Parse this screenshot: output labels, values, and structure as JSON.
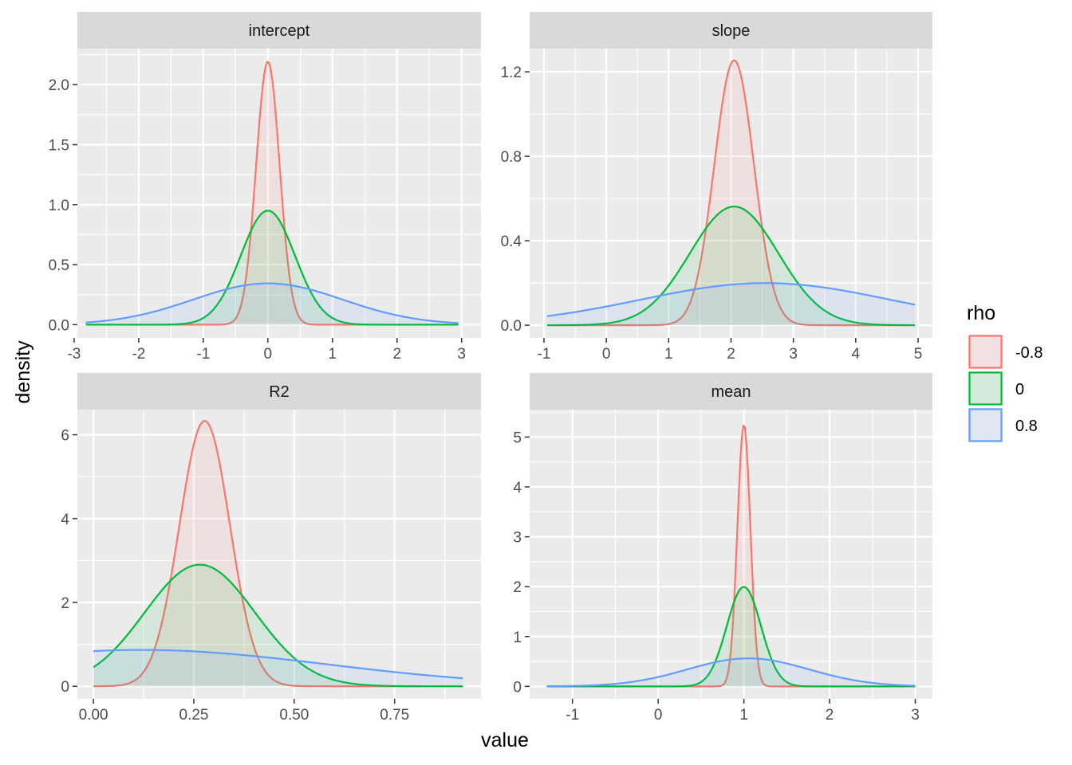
{
  "chart_data": {
    "type": "area",
    "xlabel": "value",
    "ylabel": "density",
    "legend": {
      "title": "rho",
      "position": "right",
      "items": [
        {
          "label": "-0.8",
          "color": "#F8766D"
        },
        {
          "label": "0",
          "color": "#00BA38"
        },
        {
          "label": "0.8",
          "color": "#619CFF"
        }
      ]
    },
    "panel_background": "#EBEBEB",
    "strip_background": "#D9D9D9",
    "grid": true,
    "panels": [
      {
        "title": "intercept",
        "xlim": [
          -2.95,
          3.3
        ],
        "ylim": [
          -0.11,
          2.3
        ],
        "xticks": [
          -3,
          -2,
          -1,
          0,
          1,
          2,
          3
        ],
        "xtick_labels": [
          "-3",
          "-2",
          "-1",
          "0",
          "1",
          "2",
          "3"
        ],
        "yticks": [
          0,
          0.5,
          1,
          1.5,
          2
        ],
        "ytick_labels": [
          "0.0",
          "0.5",
          "1.0",
          "1.5",
          "2.0"
        ],
        "series": [
          {
            "name": "-0.8",
            "dist": "normal",
            "mean": 0,
            "sd": 0.182,
            "range": [
              -2.82,
              2.95
            ]
          },
          {
            "name": "0",
            "dist": "normal",
            "mean": 0,
            "sd": 0.42,
            "range": [
              -2.82,
              2.95
            ]
          },
          {
            "name": "0.8",
            "dist": "normal",
            "mean": 0,
            "sd": 1.16,
            "range": [
              -2.82,
              2.95
            ]
          }
        ]
      },
      {
        "title": "slope",
        "xlim": [
          -1.23,
          5.23
        ],
        "ylim": [
          -0.06,
          1.31
        ],
        "xticks": [
          -1,
          0,
          1,
          2,
          3,
          4,
          5
        ],
        "xtick_labels": [
          "-1",
          "0",
          "1",
          "2",
          "3",
          "4",
          "5"
        ],
        "yticks": [
          0,
          0.4,
          0.8,
          1.2
        ],
        "ytick_labels": [
          "0.0",
          "0.4",
          "0.8",
          "1.2"
        ],
        "series": [
          {
            "name": "-0.8",
            "dist": "normal",
            "mean": 2.05,
            "sd": 0.318,
            "range": [
              -0.95,
              4.95
            ]
          },
          {
            "name": "0",
            "dist": "normal",
            "mean": 2.05,
            "sd": 0.71,
            "range": [
              -0.95,
              4.95
            ]
          },
          {
            "name": "0.8",
            "dist": "normal",
            "mean": 2.55,
            "sd": 2.0,
            "range": [
              -0.95,
              4.95
            ]
          }
        ]
      },
      {
        "title": "R2",
        "xlim": [
          -0.04,
          0.965
        ],
        "ylim": [
          -0.3,
          6.6
        ],
        "xticks": [
          0,
          0.25,
          0.5,
          0.75
        ],
        "xtick_labels": [
          "0.00",
          "0.25",
          "0.50",
          "0.75"
        ],
        "yticks": [
          0,
          2,
          4,
          6
        ],
        "ytick_labels": [
          "0",
          "2",
          "4",
          "6"
        ],
        "series": [
          {
            "name": "-0.8",
            "dist": "normal",
            "mean": 0.277,
            "sd": 0.063,
            "range": [
              0,
              0.92
            ]
          },
          {
            "name": "0",
            "dist": "normal",
            "mean": 0.265,
            "sd": 0.1375,
            "range": [
              0,
              0.92
            ]
          },
          {
            "name": "0.8",
            "dist": "normal",
            "mean": 0.12,
            "sd": 0.46,
            "range": [
              0,
              0.92
            ]
          }
        ]
      },
      {
        "title": "mean",
        "xlim": [
          -1.5,
          3.2
        ],
        "ylim": [
          -0.25,
          5.55
        ],
        "xticks": [
          -1,
          0,
          1,
          2,
          3
        ],
        "xtick_labels": [
          "-1",
          "0",
          "1",
          "2",
          "3"
        ],
        "yticks": [
          0,
          1,
          2,
          3,
          4,
          5
        ],
        "ytick_labels": [
          "0",
          "1",
          "2",
          "3",
          "4",
          "5"
        ],
        "series": [
          {
            "name": "-0.8",
            "dist": "normal",
            "mean": 1.0,
            "sd": 0.076,
            "range": [
              -1.3,
              3.0
            ]
          },
          {
            "name": "0",
            "dist": "normal",
            "mean": 1.0,
            "sd": 0.2,
            "range": [
              -1.3,
              3.0
            ]
          },
          {
            "name": "0.8",
            "dist": "normal",
            "mean": 1.05,
            "sd": 0.71,
            "range": [
              -1.3,
              3.0
            ]
          }
        ]
      }
    ]
  }
}
